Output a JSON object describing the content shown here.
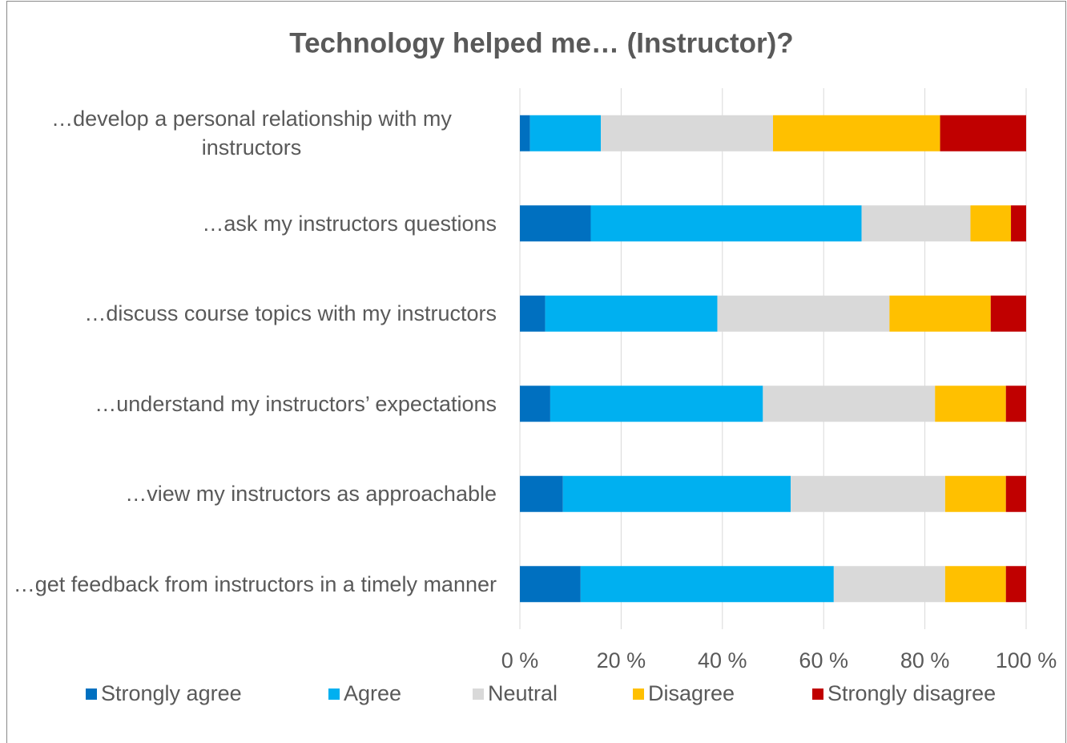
{
  "chart_data": {
    "type": "stacked_barh",
    "title": "Technology helped me… (Instructor)?",
    "categories": [
      "…develop a personal relationship with my instructors",
      "…ask my instructors questions",
      "…discuss course topics with my instructors",
      "…understand my instructors’ expectations",
      "…view my instructors as approachable",
      "…get feedback from instructors in a timely manner"
    ],
    "series": [
      {
        "name": "Strongly agree",
        "color": "#0070c0",
        "values": [
          2,
          14,
          5,
          6,
          8.5,
          12
        ]
      },
      {
        "name": "Agree",
        "color": "#00b0f0",
        "values": [
          14,
          53.5,
          34,
          42,
          45,
          50
        ]
      },
      {
        "name": "Neutral",
        "color": "#d9d9d9",
        "values": [
          34,
          21.5,
          34,
          34,
          30.5,
          22
        ]
      },
      {
        "name": "Disagree",
        "color": "#ffc000",
        "values": [
          33,
          8,
          20,
          14,
          12,
          12
        ]
      },
      {
        "name": "Strongly disagree",
        "color": "#c00000",
        "values": [
          17,
          3,
          7,
          4,
          4,
          4
        ]
      }
    ],
    "xlim": [
      0,
      100
    ],
    "xticks": [
      {
        "value": 0,
        "label": "0 %"
      },
      {
        "value": 20,
        "label": "20 %"
      },
      {
        "value": 40,
        "label": "40 %"
      },
      {
        "value": 60,
        "label": "60 %"
      },
      {
        "value": 80,
        "label": "80 %"
      },
      {
        "value": 100,
        "label": "100 %"
      }
    ],
    "grid": true,
    "legend": "bottom"
  }
}
